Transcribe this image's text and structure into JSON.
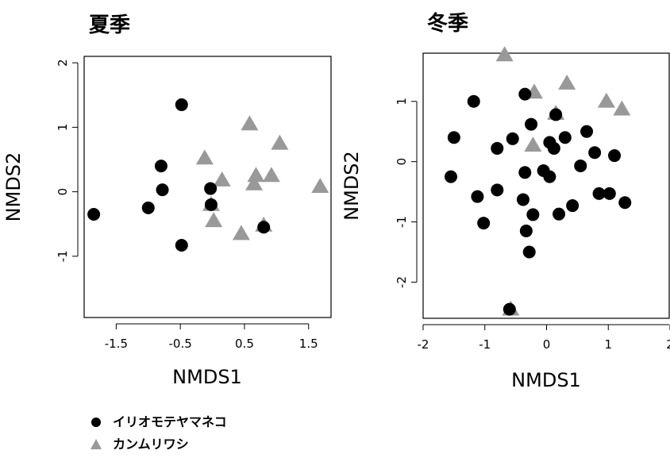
{
  "chart_data": [
    {
      "type": "scatter",
      "title": "夏季",
      "xlabel": "NMDS1",
      "ylabel": "NMDS2",
      "xlim": [
        -2.0,
        1.85
      ],
      "ylim": [
        -1.95,
        2.1
      ],
      "xticks": [
        "-1.5",
        "-0.5",
        "0.5",
        "1.5"
      ],
      "xtick_values": [
        -1.5,
        -0.5,
        0.5,
        1.5
      ],
      "yticks": [
        "-1",
        "0",
        "1",
        "2"
      ],
      "ytick_values": [
        -1,
        0,
        1,
        2
      ],
      "grid": false,
      "series": [
        {
          "name": "イリオモテヤマネコ",
          "marker": "circle",
          "color": "#000000",
          "points": [
            [
              -1.85,
              -0.35
            ],
            [
              -1.0,
              -0.25
            ],
            [
              -0.8,
              0.4
            ],
            [
              -0.78,
              0.03
            ],
            [
              -0.48,
              1.35
            ],
            [
              -0.48,
              -0.83
            ],
            [
              -0.03,
              0.05
            ],
            [
              -0.02,
              -0.2
            ],
            [
              0.8,
              -0.55
            ]
          ]
        },
        {
          "name": "カンムリワシ",
          "marker": "triangle",
          "color": "#999999",
          "points": [
            [
              -0.12,
              0.52
            ],
            [
              0.15,
              0.18
            ],
            [
              0.58,
              1.05
            ],
            [
              1.05,
              0.75
            ],
            [
              0.68,
              0.25
            ],
            [
              0.92,
              0.25
            ],
            [
              0.65,
              0.12
            ],
            [
              1.68,
              0.08
            ],
            [
              -0.02,
              -0.2
            ],
            [
              0.02,
              -0.45
            ],
            [
              0.45,
              -0.65
            ],
            [
              0.8,
              -0.52
            ]
          ]
        }
      ]
    },
    {
      "type": "scatter",
      "title": "冬季",
      "xlabel": "NMDS1",
      "ylabel": "NMDS2",
      "xlim": [
        -2.0,
        2.0
      ],
      "ylim": [
        -2.6,
        1.8
      ],
      "xticks": [
        "-2",
        "-1",
        "0",
        "1",
        "2"
      ],
      "xtick_values": [
        -2,
        -1,
        0,
        1,
        2
      ],
      "yticks": [
        "-2",
        "-1",
        "0",
        "1"
      ],
      "ytick_values": [
        -2,
        -1,
        0,
        1
      ],
      "grid": false,
      "series": [
        {
          "name": "イリオモテヤマネコ",
          "marker": "circle",
          "color": "#000000",
          "points": [
            [
              -1.55,
              -0.25
            ],
            [
              -1.5,
              0.4
            ],
            [
              -1.18,
              1.0
            ],
            [
              -1.12,
              -0.58
            ],
            [
              -1.02,
              -1.02
            ],
            [
              -0.8,
              0.22
            ],
            [
              -0.8,
              -0.47
            ],
            [
              -0.55,
              0.38
            ],
            [
              -0.35,
              1.12
            ],
            [
              -0.35,
              -0.18
            ],
            [
              -0.38,
              -0.63
            ],
            [
              -0.33,
              -1.15
            ],
            [
              -0.28,
              -1.5
            ],
            [
              -0.25,
              0.62
            ],
            [
              -0.22,
              -0.88
            ],
            [
              -0.05,
              -0.15
            ],
            [
              0.05,
              0.32
            ],
            [
              0.05,
              -0.25
            ],
            [
              0.12,
              0.22
            ],
            [
              0.15,
              0.78
            ],
            [
              0.2,
              -0.87
            ],
            [
              0.3,
              0.4
            ],
            [
              0.42,
              -0.73
            ],
            [
              0.55,
              -0.07
            ],
            [
              0.65,
              0.5
            ],
            [
              0.78,
              0.15
            ],
            [
              0.85,
              -0.53
            ],
            [
              1.02,
              -0.53
            ],
            [
              1.1,
              0.1
            ],
            [
              1.27,
              -0.68
            ],
            [
              -0.6,
              -2.45
            ]
          ]
        },
        {
          "name": "カンムリワシ",
          "marker": "triangle",
          "color": "#999999",
          "points": [
            [
              -0.68,
              1.77
            ],
            [
              -0.2,
              1.15
            ],
            [
              0.33,
              1.3
            ],
            [
              0.15,
              0.8
            ],
            [
              -0.22,
              0.27
            ],
            [
              0.97,
              1.0
            ],
            [
              1.22,
              0.87
            ],
            [
              -0.58,
              -2.45
            ]
          ]
        }
      ]
    }
  ],
  "legend": {
    "items": [
      {
        "label": "イリオモテヤマネコ",
        "marker": "circle",
        "color": "#000000"
      },
      {
        "label": "カンムリワシ",
        "marker": "triangle",
        "color": "#999999"
      }
    ]
  }
}
